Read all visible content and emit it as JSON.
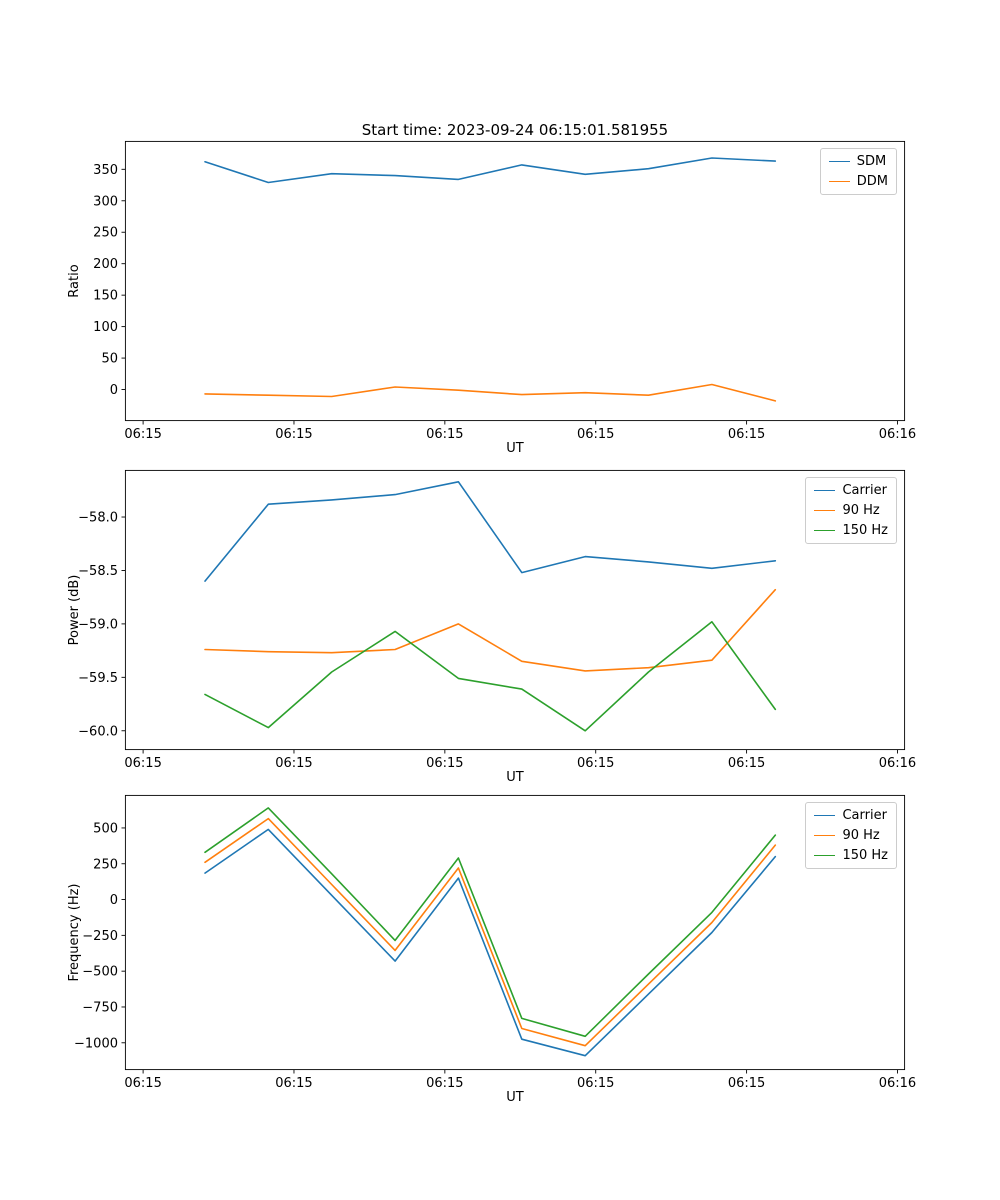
{
  "figure": {
    "title": "Start time: 2023-09-24 06:15:01.581955",
    "background_color": "#ffffff",
    "text_color": "#000000",
    "axis_color": "#000000"
  },
  "palette": {
    "blue": "#1f77b4",
    "orange": "#ff7f0e",
    "green": "#2ca02c"
  },
  "chart_data": [
    {
      "type": "line",
      "name": "ratio",
      "ylabel": "Ratio",
      "xlabel": "UT",
      "grid": false,
      "legend_position": "upper right",
      "xlim": [
        -0.12,
        5.05
      ],
      "ylim": [
        -50,
        395
      ],
      "xticks": [
        0,
        1,
        2,
        3,
        4,
        5
      ],
      "xticklabels": [
        "06:15",
        "06:15",
        "06:15",
        "06:15",
        "06:15",
        "06:16"
      ],
      "yticks": [
        0,
        50,
        100,
        150,
        200,
        250,
        300,
        350
      ],
      "yticklabels": [
        "0",
        "50",
        "100",
        "150",
        "200",
        "250",
        "300",
        "350"
      ],
      "x": [
        0.41,
        0.83,
        1.25,
        1.67,
        2.09,
        2.51,
        2.93,
        3.35,
        3.77,
        4.19
      ],
      "series": [
        {
          "name": "SDM",
          "color": "#1f77b4",
          "values": [
            362,
            329,
            343,
            340,
            334,
            357,
            342,
            351,
            368,
            363
          ]
        },
        {
          "name": "DDM",
          "color": "#ff7f0e",
          "values": [
            -7,
            -9,
            -11,
            4,
            -1,
            -8,
            -5,
            -9,
            8,
            -18
          ]
        }
      ]
    },
    {
      "type": "line",
      "name": "power",
      "ylabel": "Power (dB)",
      "xlabel": "UT",
      "grid": false,
      "legend_position": "upper right",
      "xlim": [
        -0.12,
        5.05
      ],
      "ylim": [
        -60.18,
        -57.56
      ],
      "xticks": [
        0,
        1,
        2,
        3,
        4,
        5
      ],
      "xticklabels": [
        "06:15",
        "06:15",
        "06:15",
        "06:15",
        "06:15",
        "06:16"
      ],
      "yticks": [
        -60.0,
        -59.5,
        -59.0,
        -58.5,
        -58.0
      ],
      "yticklabels": [
        "−60.0",
        "−59.5",
        "−59.0",
        "−58.5",
        "−58.0"
      ],
      "x": [
        0.41,
        0.83,
        1.25,
        1.67,
        2.09,
        2.51,
        2.93,
        3.35,
        3.77,
        4.19
      ],
      "series": [
        {
          "name": "Carrier",
          "color": "#1f77b4",
          "values": [
            -58.6,
            -57.88,
            -57.84,
            -57.79,
            -57.67,
            -58.52,
            -58.37,
            -58.42,
            -58.48,
            -58.41
          ]
        },
        {
          "name": "90 Hz",
          "color": "#ff7f0e",
          "values": [
            -59.24,
            -59.26,
            -59.27,
            -59.24,
            -59.0,
            -59.35,
            -59.44,
            -59.41,
            -59.34,
            -58.68
          ]
        },
        {
          "name": "150 Hz",
          "color": "#2ca02c",
          "values": [
            -59.66,
            -59.97,
            -59.45,
            -59.07,
            -59.51,
            -59.61,
            -60.0,
            -59.45,
            -58.98,
            -59.8
          ]
        }
      ]
    },
    {
      "type": "line",
      "name": "frequency",
      "ylabel": "Frequency (Hz)",
      "xlabel": "UT",
      "grid": false,
      "legend_position": "upper right",
      "xlim": [
        -0.12,
        5.05
      ],
      "ylim": [
        -1190,
        730
      ],
      "xticks": [
        0,
        1,
        2,
        3,
        4,
        5
      ],
      "xticklabels": [
        "06:15",
        "06:15",
        "06:15",
        "06:15",
        "06:15",
        "06:16"
      ],
      "yticks": [
        -1000,
        -750,
        -500,
        -250,
        0,
        250,
        500
      ],
      "yticklabels": [
        "−1000",
        "−750",
        "−500",
        "−250",
        "0",
        "250",
        "500"
      ],
      "x": [
        0.41,
        0.83,
        1.25,
        1.67,
        2.09,
        2.51,
        2.93,
        3.35,
        3.77,
        4.19
      ],
      "series": [
        {
          "name": "Carrier",
          "color": "#1f77b4",
          "values": [
            185,
            490,
            30,
            -430,
            150,
            -975,
            -1090,
            -660,
            -230,
            300
          ]
        },
        {
          "name": "90 Hz",
          "color": "#ff7f0e",
          "values": [
            260,
            565,
            105,
            -355,
            220,
            -900,
            -1020,
            -590,
            -160,
            380
          ]
        },
        {
          "name": "150 Hz",
          "color": "#2ca02c",
          "values": [
            330,
            640,
            180,
            -285,
            290,
            -830,
            -955,
            -520,
            -90,
            450
          ]
        }
      ]
    }
  ]
}
